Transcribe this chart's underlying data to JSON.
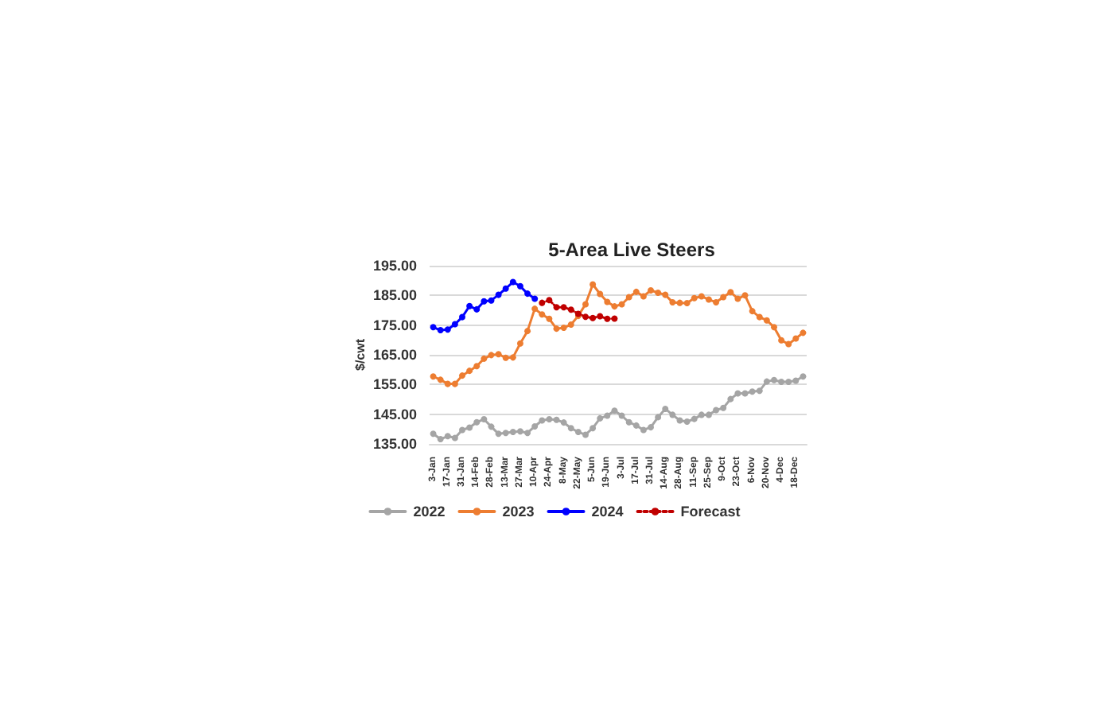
{
  "chart_data": {
    "type": "line",
    "title": "5-Area Live Steers",
    "ylabel": "$/cwt",
    "categories": [
      "3-Jan",
      null,
      "17-Jan",
      null,
      "31-Jan",
      null,
      "14-Feb",
      null,
      "28-Feb",
      null,
      "13-Mar",
      null,
      "27-Mar",
      null,
      "10-Apr",
      null,
      "24-Apr",
      null,
      "8-May",
      null,
      "22-May",
      null,
      "5-Jun",
      null,
      "19-Jun",
      null,
      "3-Jul",
      null,
      "17-Jul",
      null,
      "31-Jul",
      null,
      "14-Aug",
      null,
      "28-Aug",
      null,
      "11-Sep",
      null,
      "25-Sep",
      null,
      "9-Oct",
      null,
      "23-Oct",
      null,
      "6-Nov",
      null,
      "20-Nov",
      null,
      "4-Dec",
      null,
      "18-Dec",
      null
    ],
    "series": [
      {
        "name": "2022",
        "color": "#a5a5a5",
        "values": [
          138.4,
          136.6,
          137.6,
          137,
          139.7,
          140.5,
          142.3,
          143.3,
          140.8,
          138.4,
          138.7,
          139,
          139.2,
          138.7,
          140.9,
          142.9,
          143.3,
          143.1,
          142.2,
          140.3,
          139,
          138.1,
          140.3,
          143.6,
          144.5,
          146.2,
          144.5,
          142.3,
          141.2,
          139.7,
          140.6,
          144,
          146.8,
          144.8,
          142.9,
          142.5,
          143.4,
          144.8,
          144.8,
          146.4,
          147.1,
          150.1,
          152,
          152,
          152.6,
          152.9,
          156,
          156.5,
          155.9,
          155.9,
          156.3,
          157.7
        ]
      },
      {
        "name": "2023",
        "color": "#ed7d31",
        "values": [
          157.7,
          156.6,
          155.2,
          155.2,
          158,
          159.6,
          161.2,
          163.7,
          164.9,
          165.2,
          164,
          164.1,
          168.8,
          173,
          180.5,
          178.6,
          177.1,
          173.8,
          174.1,
          175.2,
          178.1,
          182,
          188.7,
          185.5,
          182.8,
          181.3,
          182,
          184.4,
          186.2,
          184.7,
          186.7,
          185.9,
          185.2,
          182.7,
          182.5,
          182.4,
          184.1,
          184.7,
          183.6,
          182.7,
          184.4,
          186.1,
          183.9,
          185,
          179.7,
          177.7,
          176.6,
          174.3,
          169.9,
          168.6,
          170.5,
          172.4
        ]
      },
      {
        "name": "2024",
        "color": "#0000ff",
        "values": [
          174.3,
          173.3,
          173.5,
          175.3,
          177.7,
          181.4,
          180.3,
          183,
          183.3,
          185.2,
          187.3,
          189.5,
          188.1,
          185.6,
          183.9,
          null,
          null,
          null,
          null,
          null,
          null,
          null,
          null,
          null,
          null,
          null,
          null,
          null,
          null,
          null,
          null,
          null,
          null,
          null,
          null,
          null,
          null,
          null,
          null,
          null,
          null,
          null,
          null,
          null,
          null,
          null,
          null,
          null,
          null,
          null,
          null,
          null
        ]
      },
      {
        "name": "Forecast",
        "color": "#c00000",
        "line_style": "dotted",
        "values": [
          null,
          null,
          null,
          null,
          null,
          null,
          null,
          null,
          null,
          null,
          null,
          null,
          null,
          null,
          null,
          182.5,
          183.4,
          181,
          181,
          180.2,
          178.8,
          177.8,
          177.4,
          178,
          177.1,
          177.2,
          null,
          null,
          null,
          null,
          null,
          null,
          null,
          null,
          null,
          null,
          null,
          null,
          null,
          null,
          null,
          null,
          null,
          null,
          null,
          null,
          null,
          null,
          null,
          null,
          null,
          null
        ]
      }
    ],
    "ylim": [
      135,
      195
    ],
    "yticks": [
      {
        "value": 135,
        "label": "135.00"
      },
      {
        "value": 145,
        "label": "145.00"
      },
      {
        "value": 155,
        "label": "155.00"
      },
      {
        "value": 165,
        "label": "165.00"
      },
      {
        "value": 175,
        "label": "175.00"
      },
      {
        "value": 185,
        "label": "185.00"
      },
      {
        "value": 195,
        "label": "195.00"
      }
    ],
    "grid": "y",
    "legend": "bottom",
    "marker": "circle",
    "line_style": "solid"
  }
}
